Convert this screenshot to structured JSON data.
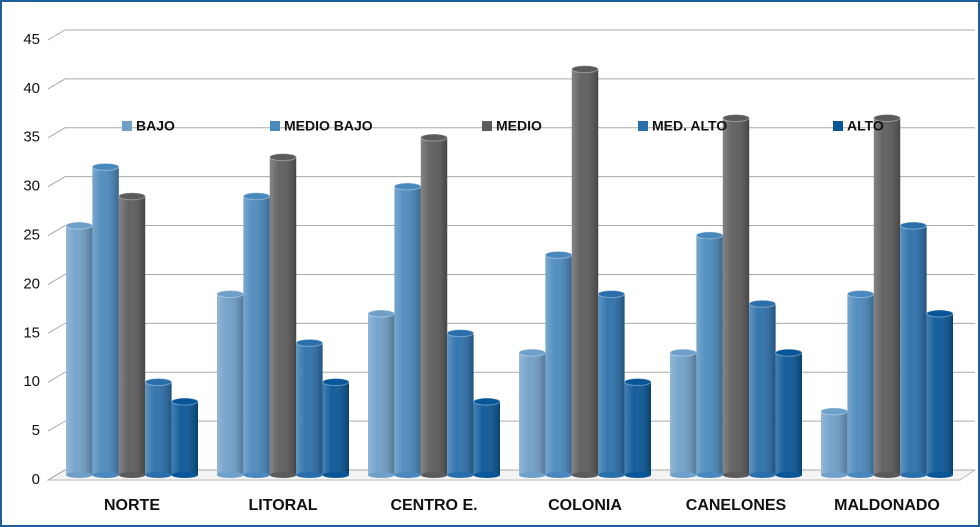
{
  "chart_data": {
    "type": "bar3d",
    "categories": [
      "NORTE",
      "LITORAL",
      "CENTRO E.",
      "COLONIA",
      "CANELONES",
      "MALDONADO"
    ],
    "series": [
      {
        "name": "BAJO",
        "color": "#6fa0c9",
        "values": [
          25,
          18,
          16,
          12,
          12,
          6
        ]
      },
      {
        "name": "MEDIO BAJO",
        "color": "#4a89bd",
        "values": [
          31,
          28,
          29,
          22,
          24,
          18
        ]
      },
      {
        "name": "MEDIO",
        "color": "#5b5b5b",
        "values": [
          28,
          32,
          34,
          41,
          36,
          36
        ]
      },
      {
        "name": "MED. ALTO",
        "color": "#2a6fab",
        "values": [
          9,
          13,
          14,
          18,
          17,
          25
        ]
      },
      {
        "name": "ALTO",
        "color": "#085697",
        "values": [
          7,
          9,
          7,
          9,
          12,
          16
        ]
      }
    ],
    "ylim": [
      0,
      45
    ],
    "yticks": [
      0,
      5,
      10,
      15,
      20,
      25,
      30,
      35,
      40,
      45
    ],
    "grid": true,
    "legend": "top"
  }
}
